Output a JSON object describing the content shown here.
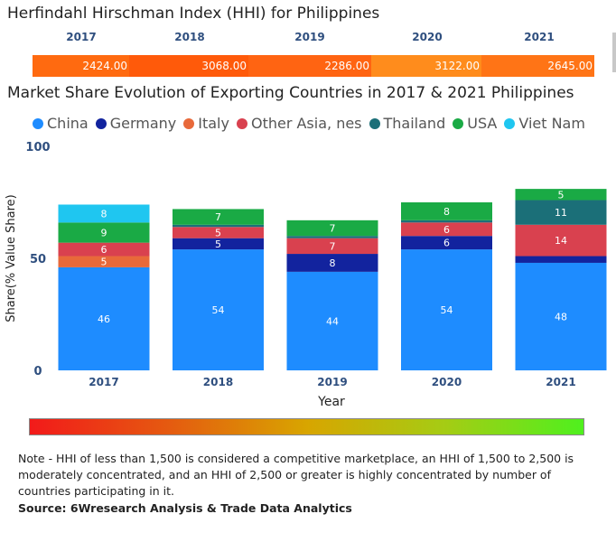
{
  "hhi": {
    "title": "Herfindahl Hirschman Index (HHI) for Philippines",
    "years": [
      "2017",
      "2018",
      "2019",
      "2020",
      "2021"
    ],
    "values": [
      "2424.00",
      "3068.00",
      "2286.00",
      "3122.00",
      "2645.00"
    ],
    "colors": [
      "#ff6a10",
      "#ff5a0a",
      "#ff6412",
      "#ff8c1c",
      "#ff7416"
    ]
  },
  "legend": [
    {
      "name": "China",
      "color": "#1e8cff"
    },
    {
      "name": "Germany",
      "color": "#12239e"
    },
    {
      "name": "Italy",
      "color": "#e8693a"
    },
    {
      "name": "Other Asia, nes",
      "color": "#d9414f"
    },
    {
      "name": "Thailand",
      "color": "#1b6f78"
    },
    {
      "name": "USA",
      "color": "#1aaa45"
    },
    {
      "name": "Viet Nam",
      "color": "#1fc6f0"
    }
  ],
  "chart_data": {
    "type": "bar",
    "stacked": true,
    "title": "Market Share Evolution of Exporting Countries in 2017 & 2021 Philippines",
    "xlabel": "Year",
    "ylabel": "Share(% Value Share)",
    "ylim": [
      0,
      100
    ],
    "yticks": [
      "0",
      "50",
      "100"
    ],
    "categories": [
      "2017",
      "2018",
      "2019",
      "2020",
      "2021"
    ],
    "series": [
      {
        "name": "China",
        "color": "#1e8cff",
        "values": [
          46,
          54,
          44,
          54,
          48
        ]
      },
      {
        "name": "Germany",
        "color": "#12239e",
        "values": [
          0,
          5,
          8,
          6,
          3
        ]
      },
      {
        "name": "Italy",
        "color": "#e8693a",
        "values": [
          5,
          0,
          0,
          0,
          0
        ]
      },
      {
        "name": "Other Asia, nes",
        "color": "#d9414f",
        "values": [
          6,
          5,
          7,
          6,
          14
        ]
      },
      {
        "name": "Thailand",
        "color": "#1b6f78",
        "values": [
          0,
          1,
          1,
          1,
          11
        ]
      },
      {
        "name": "USA",
        "color": "#1aaa45",
        "values": [
          9,
          7,
          7,
          8,
          5
        ]
      },
      {
        "name": "Viet Nam",
        "color": "#1fc6f0",
        "values": [
          8,
          0,
          0,
          0,
          0
        ]
      }
    ],
    "labels": [
      [
        "46",
        "",
        "5",
        "6",
        "",
        "9",
        "8"
      ],
      [
        "54",
        "5",
        "",
        "5",
        "",
        "7",
        ""
      ],
      [
        "44",
        "8",
        "",
        "7",
        "",
        "7",
        ""
      ],
      [
        "54",
        "6",
        "",
        "6",
        "",
        "8",
        ""
      ],
      [
        "48",
        "",
        "",
        "14",
        "11",
        "5",
        ""
      ]
    ]
  },
  "note": "Note - HHI of less than 1,500 is considered a competitive marketplace, an HHI of 1,500 to 2,500 is moderately concentrated, and an HHI of 2,500 or greater is highly concentrated by number of countries participating in it.",
  "source": "Source: 6Wresearch Analysis & Trade Data Analytics"
}
